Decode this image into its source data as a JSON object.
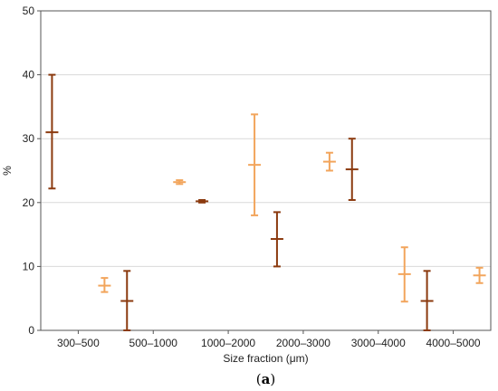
{
  "chart_data": {
    "type": "errorbar",
    "categories": [
      "300–500",
      "500–1000",
      "1000–2000",
      "2000–3000",
      "3000–4000",
      "4000–5000"
    ],
    "xlabel": "Size fraction (μm)",
    "ylabel": "%",
    "ylim": [
      0,
      50
    ],
    "yticks": [
      0,
      10,
      20,
      30,
      40,
      50
    ],
    "grid": true,
    "series": [
      {
        "color": "#8b3a0f",
        "center": [
          31.0,
          4.6,
          20.2,
          14.3,
          25.2,
          4.6
        ],
        "low": [
          22.2,
          0.0,
          20.0,
          10.0,
          20.4,
          0.0
        ],
        "high": [
          40.0,
          9.3,
          20.4,
          18.5,
          30.0,
          9.3
        ]
      },
      {
        "color": "#f2a55c",
        "center": [
          7.0,
          23.2,
          25.9,
          26.4,
          8.8,
          8.6
        ],
        "low": [
          6.0,
          22.9,
          18.0,
          25.0,
          4.5,
          7.4
        ],
        "high": [
          8.2,
          23.5,
          33.8,
          27.8,
          13.0,
          9.8
        ]
      }
    ],
    "caption": "(a)"
  }
}
